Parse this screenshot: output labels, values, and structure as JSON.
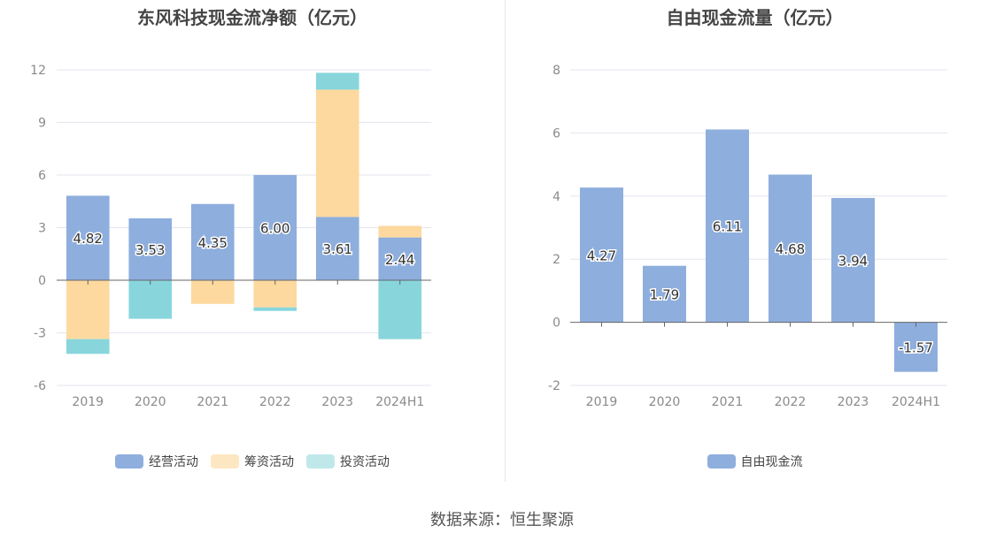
{
  "colors": {
    "operating": "#8eaedd",
    "financing": "#fdd99f",
    "investing": "#88d6dc",
    "free": "#8eaedd",
    "financing_legend": "#fde7c2",
    "investing_legend": "#c0e8eb",
    "grid": "#e3e6ef",
    "axis": "#666666"
  },
  "source_text": "数据来源：恒生聚源",
  "chart_data": [
    {
      "type": "bar",
      "stacked": true,
      "title": "东风科技现金流净额（亿元）",
      "categories": [
        "2019",
        "2020",
        "2021",
        "2022",
        "2023",
        "2024H1"
      ],
      "ylim": [
        -6,
        12
      ],
      "yticks": [
        -6,
        -3,
        0,
        3,
        6,
        9,
        12
      ],
      "grid": true,
      "legend_position": "bottom",
      "series": [
        {
          "name": "经营活动",
          "color_key": "operating",
          "legend_color_key": "operating",
          "values": [
            4.82,
            3.53,
            4.35,
            6.0,
            3.61,
            2.44
          ],
          "labels": [
            "4.82",
            "3.53",
            "4.35",
            "6.00",
            "3.61",
            "2.44"
          ]
        },
        {
          "name": "筹资活动",
          "color_key": "financing",
          "legend_color_key": "financing_legend",
          "values": [
            -3.36,
            0.0,
            -1.35,
            -1.55,
            7.26,
            0.66
          ]
        },
        {
          "name": "投资活动",
          "color_key": "investing",
          "legend_color_key": "investing_legend",
          "values": [
            -0.84,
            -2.2,
            0.0,
            -0.2,
            0.96,
            -3.36
          ]
        }
      ]
    },
    {
      "type": "bar",
      "title": "自由现金流量（亿元）",
      "categories": [
        "2019",
        "2020",
        "2021",
        "2022",
        "2023",
        "2024H1"
      ],
      "ylim": [
        -2,
        8
      ],
      "yticks": [
        -2,
        0,
        2,
        4,
        6,
        8
      ],
      "grid": true,
      "legend_position": "bottom",
      "series": [
        {
          "name": "自由现金流",
          "color_key": "free",
          "legend_color_key": "free",
          "values": [
            4.27,
            1.79,
            6.11,
            4.68,
            3.94,
            -1.57
          ],
          "labels": [
            "4.27",
            "1.79",
            "6.11",
            "4.68",
            "3.94",
            "-1.57"
          ]
        }
      ]
    }
  ]
}
